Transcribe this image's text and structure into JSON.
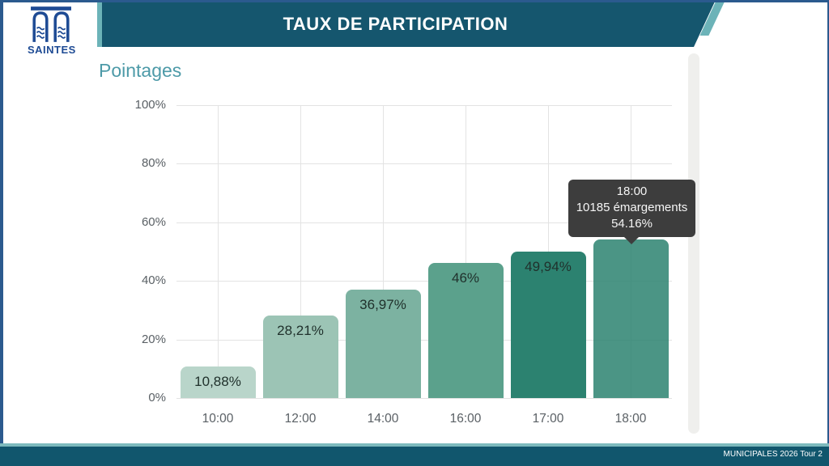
{
  "logo": {
    "text": "SAINTES",
    "color": "#1e4b94",
    "icon": "saintes-arches-icon"
  },
  "header": {
    "title": "TAUX DE PARTICIPATION",
    "band_color": "#15566e",
    "accent_color": "#6cb3b8"
  },
  "footer": {
    "text": "MUNICIPALES 2026 Tour 2",
    "band_color": "#11566d",
    "stripe_color": "#7dbabd"
  },
  "chart_data": {
    "type": "bar",
    "title": "Pointages",
    "title_color": "#4d9aa8",
    "categories": [
      "10:00",
      "12:00",
      "14:00",
      "16:00",
      "17:00",
      "18:00"
    ],
    "values": [
      10.88,
      28.21,
      36.97,
      46,
      49.94,
      54.16
    ],
    "bar_labels": [
      "10,88%",
      "28,21%",
      "36,97%",
      "46%",
      "49,94%",
      ""
    ],
    "bar_colors": [
      "#b9d5ca",
      "#9cc4b5",
      "#7cb2a1",
      "#5ba18c",
      "#2c8270",
      "#2c8270"
    ],
    "active_index": 5,
    "active_opacity": 0.85,
    "y_ticks": [
      "0%",
      "20%",
      "40%",
      "60%",
      "80%",
      "100%"
    ],
    "ylim": [
      0,
      100
    ],
    "grid": true,
    "legend": null,
    "tooltip": {
      "title": "18:00",
      "subtitle": "10185 émargements",
      "value": "54.16%",
      "bg": "#3d3d3d"
    }
  }
}
